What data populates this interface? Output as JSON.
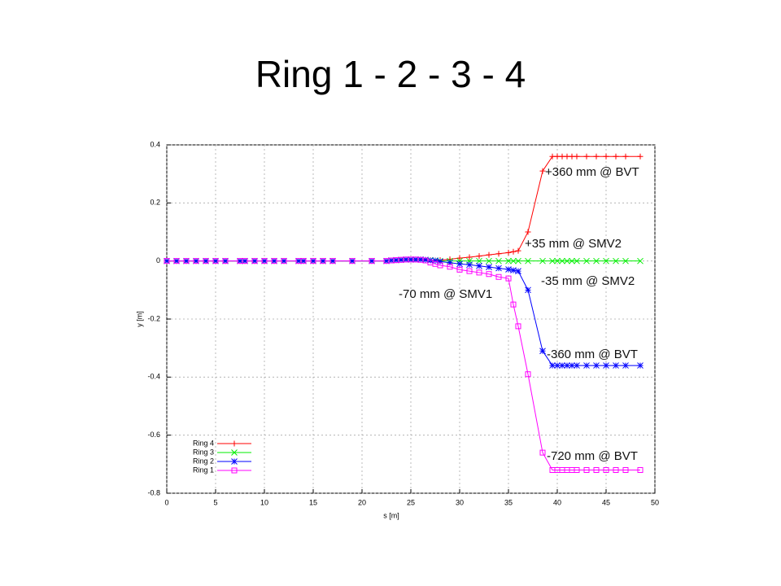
{
  "chart_data": {
    "type": "line",
    "title": "Ring 1 - 2 - 3 - 4",
    "xlabel": "s [m]",
    "ylabel": "y [m]",
    "x": [
      0,
      1,
      2,
      3,
      4,
      5,
      6,
      7.5,
      8,
      9,
      10,
      11,
      12,
      13.5,
      14,
      15,
      16,
      17,
      19,
      21,
      22.5,
      23,
      23.5,
      24,
      24.5,
      25,
      25.5,
      26,
      26.5,
      27,
      27.5,
      28,
      29,
      30,
      31,
      32,
      33,
      34,
      35,
      35.5,
      36,
      37,
      38.5,
      39.5,
      40,
      40.5,
      41,
      41.5,
      42,
      43,
      44,
      45,
      46,
      47,
      48.5
    ],
    "series": [
      {
        "name": "Ring 4",
        "color": "#ff0000",
        "marker": "plus",
        "values": [
          0,
          0,
          0,
          0,
          0,
          0,
          0,
          0,
          0,
          0,
          0,
          0,
          0,
          0,
          0,
          0,
          0,
          0,
          0,
          0,
          0,
          0.002,
          0.003,
          0.004,
          0.005,
          0.005,
          0.005,
          0.005,
          0.004,
          0.003,
          0.002,
          0.003,
          0.006,
          0.01,
          0.013,
          0.017,
          0.021,
          0.025,
          0.029,
          0.032,
          0.035,
          0.1,
          0.31,
          0.36,
          0.36,
          0.36,
          0.36,
          0.36,
          0.36,
          0.36,
          0.36,
          0.36,
          0.36,
          0.36,
          0.36
        ]
      },
      {
        "name": "Ring 3",
        "color": "#00ee00",
        "marker": "cross",
        "values": [
          0,
          0,
          0,
          0,
          0,
          0,
          0,
          0,
          0,
          0,
          0,
          0,
          0,
          0,
          0,
          0,
          0,
          0,
          0,
          0,
          0,
          0.002,
          0.003,
          0.004,
          0.005,
          0.005,
          0.005,
          0.005,
          0.004,
          0.003,
          0.002,
          0,
          0,
          0,
          0,
          0,
          0,
          0,
          0,
          0,
          0,
          0,
          0,
          0,
          0,
          0,
          0,
          0,
          0,
          0,
          0,
          0,
          0,
          0,
          0
        ]
      },
      {
        "name": "Ring 2",
        "color": "#0000ff",
        "marker": "star",
        "values": [
          0,
          0,
          0,
          0,
          0,
          0,
          0,
          0,
          0,
          0,
          0,
          0,
          0,
          0,
          0,
          0,
          0,
          0,
          0,
          0,
          0,
          0.002,
          0.003,
          0.004,
          0.005,
          0.005,
          0.005,
          0.005,
          0.004,
          0.002,
          0.001,
          -0.002,
          -0.006,
          -0.01,
          -0.013,
          -0.017,
          -0.021,
          -0.025,
          -0.029,
          -0.032,
          -0.035,
          -0.1,
          -0.31,
          -0.36,
          -0.36,
          -0.36,
          -0.36,
          -0.36,
          -0.36,
          -0.36,
          -0.36,
          -0.36,
          -0.36,
          -0.36,
          -0.36
        ]
      },
      {
        "name": "Ring 1",
        "color": "#ff00ff",
        "marker": "square",
        "values": [
          0,
          0,
          0,
          0,
          0,
          0,
          0,
          0,
          0,
          0,
          0,
          0,
          0,
          0,
          0,
          0,
          0,
          0,
          0,
          0,
          0,
          0.002,
          0.003,
          0.004,
          0.005,
          0.005,
          0.005,
          0.004,
          0.002,
          -0.005,
          -0.01,
          -0.015,
          -0.02,
          -0.03,
          -0.035,
          -0.04,
          -0.045,
          -0.055,
          -0.06,
          -0.15,
          -0.225,
          -0.39,
          -0.66,
          -0.72,
          -0.72,
          -0.72,
          -0.72,
          -0.72,
          -0.72,
          -0.72,
          -0.72,
          -0.72,
          -0.72,
          -0.72,
          -0.72
        ]
      }
    ],
    "xlim": [
      0,
      50
    ],
    "xticks": [
      0,
      5,
      10,
      15,
      20,
      25,
      30,
      35,
      40,
      45,
      50
    ],
    "ylim": [
      -0.8,
      0.4
    ],
    "yticks": [
      0.4,
      0.2,
      0,
      -0.2,
      -0.4,
      -0.6,
      -0.8
    ],
    "grid": true,
    "legend": "lower left",
    "annotations": [
      "+360 mm @ BVT",
      "+35 mm @ SMV2",
      "-35 mm @ SMV2",
      "-70 mm @ SMV1",
      "-360 mm @ BVT",
      "-720 mm @ BVT"
    ]
  }
}
